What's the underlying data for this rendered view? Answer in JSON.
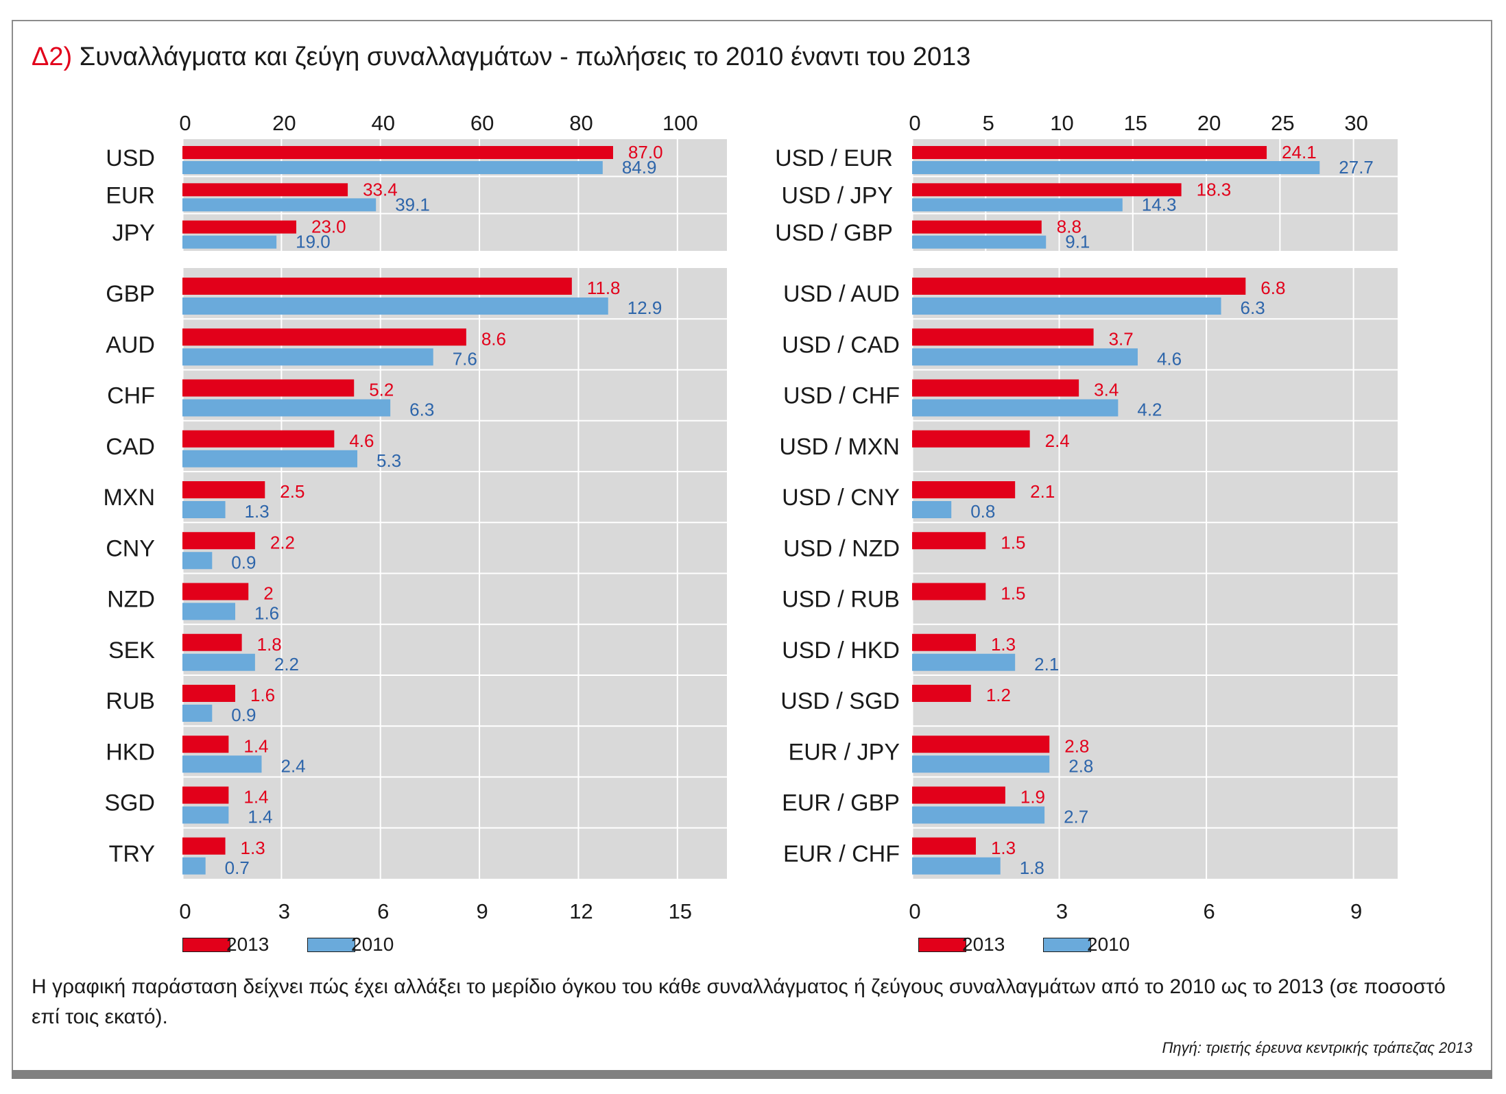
{
  "title": {
    "prefix": "Δ2)",
    "text": "Συναλλάγματα και ζεύγη συναλλαγμάτων - πωλήσεις το 2010 έναντι του 2013"
  },
  "colors": {
    "y2013": "#e2001a",
    "y2010": "#6aaadb",
    "label2013": "#e2001a",
    "label2010": "#2d65aa",
    "plot_bg": "#d9d9d9"
  },
  "legend": {
    "label_2013": "2013",
    "label_2010": "2010"
  },
  "description": "Η γραφική παράσταση δείχνει πώς έχει αλλάξει το μερίδιο όγκου του κάθε συναλλάγματος ή ζεύγους συναλλαγμάτων από το 2010 ως το 2013 (σε ποσοστό επί τοις εκατό).",
  "source": "Πηγή: τριετής έρευνα κεντρικής τράπεζας 2013",
  "chart_data": [
    {
      "type": "bar",
      "orientation": "horizontal",
      "axis_position": "top",
      "xlim": [
        0,
        110
      ],
      "ticks": [
        0,
        20,
        40,
        60,
        80,
        100
      ],
      "categories": [
        "USD",
        "EUR",
        "JPY"
      ],
      "series": [
        {
          "name": "2013",
          "values": [
            87.0,
            33.4,
            23.0
          ],
          "labels": [
            "87.0",
            "33.4",
            "23.0"
          ]
        },
        {
          "name": "2010",
          "values": [
            84.9,
            39.1,
            19.0
          ],
          "labels": [
            "84.9",
            "39.1",
            "19.0"
          ]
        }
      ]
    },
    {
      "type": "bar",
      "orientation": "horizontal",
      "axis_position": "bottom",
      "xlim": [
        0,
        16.5
      ],
      "ticks": [
        0,
        3,
        6,
        9,
        12,
        15
      ],
      "categories": [
        "GBP",
        "AUD",
        "CHF",
        "CAD",
        "MXN",
        "CNY",
        "NZD",
        "SEK",
        "RUB",
        "HKD",
        "SGD",
        "TRY"
      ],
      "series": [
        {
          "name": "2013",
          "values": [
            11.8,
            8.6,
            5.2,
            4.6,
            2.5,
            2.2,
            2,
            1.8,
            1.6,
            1.4,
            1.4,
            1.3
          ],
          "labels": [
            "11.8",
            "8.6",
            "5.2",
            "4.6",
            "2.5",
            "2.2",
            "2",
            "1.8",
            "1.6",
            "1.4",
            "1.4",
            "1.3"
          ]
        },
        {
          "name": "2010",
          "values": [
            12.9,
            7.6,
            6.3,
            5.3,
            1.3,
            0.9,
            1.6,
            2.2,
            0.9,
            2.4,
            1.4,
            0.7
          ],
          "labels": [
            "12.9",
            "7.6",
            "6.3",
            "5.3",
            "1.3",
            "0.9",
            "1.6",
            "2.2",
            "0.9",
            "2.4",
            "1.4",
            "0.7"
          ]
        }
      ]
    },
    {
      "type": "bar",
      "orientation": "horizontal",
      "axis_position": "top",
      "xlim": [
        0,
        33
      ],
      "ticks": [
        0,
        5,
        10,
        15,
        20,
        25,
        30
      ],
      "categories": [
        "USD / EUR",
        "USD / JPY",
        "USD / GBP"
      ],
      "series": [
        {
          "name": "2013",
          "values": [
            24.1,
            18.3,
            8.8
          ],
          "labels": [
            "24.1",
            "18.3",
            "8.8"
          ]
        },
        {
          "name": "2010",
          "values": [
            27.7,
            14.3,
            9.1
          ],
          "labels": [
            "27.7",
            "14.3",
            "9.1"
          ]
        }
      ]
    },
    {
      "type": "bar",
      "orientation": "horizontal",
      "axis_position": "bottom",
      "xlim": [
        0,
        9.9
      ],
      "ticks": [
        0,
        3,
        6,
        9
      ],
      "categories": [
        "USD / AUD",
        "USD / CAD",
        "USD / CHF",
        "USD / MXN",
        "USD / CNY",
        "USD / NZD",
        "USD / RUB",
        "USD / HKD",
        "USD / SGD",
        "EUR / JPY",
        "EUR / GBP",
        "EUR / CHF"
      ],
      "series": [
        {
          "name": "2013",
          "values": [
            6.8,
            3.7,
            3.4,
            2.4,
            2.1,
            1.5,
            1.5,
            1.3,
            1.2,
            2.8,
            1.9,
            1.3
          ],
          "labels": [
            "6.8",
            "3.7",
            "3.4",
            "2.4",
            "2.1",
            "1.5",
            "1.5",
            "1.3",
            "1.2",
            "2.8",
            "1.9",
            "1.3"
          ]
        },
        {
          "name": "2010",
          "values": [
            6.3,
            4.6,
            4.2,
            null,
            0.8,
            null,
            null,
            2.1,
            null,
            2.8,
            2.7,
            1.8
          ],
          "labels": [
            "6.3",
            "4.6",
            "4.2",
            "",
            "0.8",
            "",
            "",
            "2.1",
            "",
            "2.8",
            "2.7",
            "1.8"
          ]
        }
      ]
    }
  ]
}
